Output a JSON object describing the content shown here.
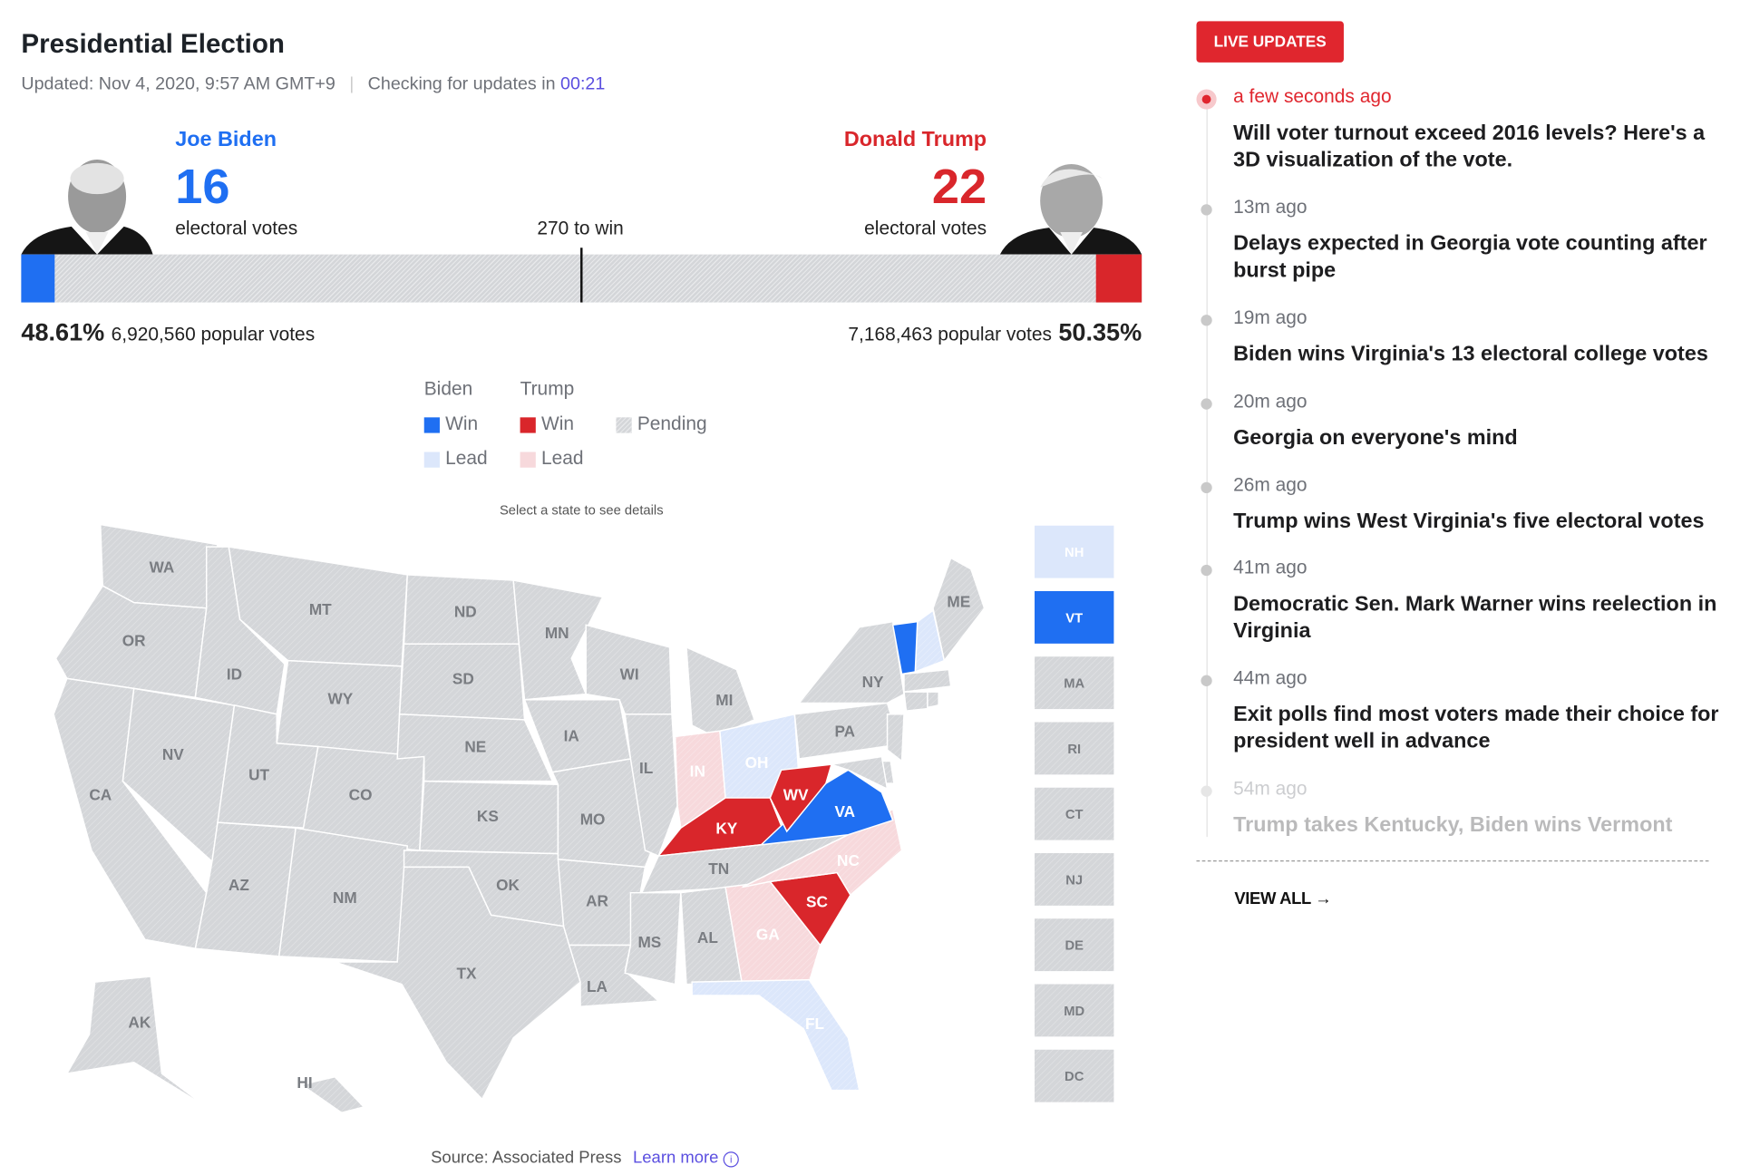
{
  "header": {
    "title": "Presidential Election",
    "updated": "Updated: Nov 4, 2020, 9:57 AM GMT+9",
    "checking": "Checking for updates in",
    "countdown": "00:21"
  },
  "candidates": [
    {
      "name": "Joe Biden",
      "electoral": 16,
      "electoral_label": "electoral votes",
      "percent": "48.61%",
      "popular": "6,920,560 popular votes",
      "color": "#1f6ff2"
    },
    {
      "name": "Donald Trump",
      "electoral": 22,
      "electoral_label": "electoral votes",
      "percent": "50.35%",
      "popular": "7,168,463 popular votes",
      "color": "#d9262b"
    }
  ],
  "threshold": {
    "value": 270,
    "label": "270 to win"
  },
  "map_legend": {
    "groups": [
      {
        "name": "Biden",
        "items": [
          {
            "label": "Win",
            "color": "#1f6ff2"
          },
          {
            "label": "Lead",
            "color": "#dce7fb"
          }
        ]
      },
      {
        "name": "Trump",
        "items": [
          {
            "label": "Win",
            "color": "#d9262b"
          },
          {
            "label": "Lead",
            "color": "#f7d9dc"
          }
        ]
      }
    ],
    "pending": {
      "label": "Pending",
      "color": "#d4d6d9"
    }
  },
  "map_hint": "Select a state to see details",
  "states": [
    {
      "abbr": "WA",
      "color": "#d4d6d9"
    },
    {
      "abbr": "OR",
      "color": "#d4d6d9"
    },
    {
      "abbr": "CA",
      "color": "#d4d6d9"
    },
    {
      "abbr": "NV",
      "color": "#d4d6d9"
    },
    {
      "abbr": "ID",
      "color": "#d4d6d9"
    },
    {
      "abbr": "MT",
      "color": "#d4d6d9"
    },
    {
      "abbr": "WY",
      "color": "#d4d6d9"
    },
    {
      "abbr": "UT",
      "color": "#d4d6d9"
    },
    {
      "abbr": "CO",
      "color": "#d4d6d9"
    },
    {
      "abbr": "AZ",
      "color": "#d4d6d9"
    },
    {
      "abbr": "NM",
      "color": "#d4d6d9"
    },
    {
      "abbr": "ND",
      "color": "#d4d6d9"
    },
    {
      "abbr": "SD",
      "color": "#d4d6d9"
    },
    {
      "abbr": "NE",
      "color": "#d4d6d9"
    },
    {
      "abbr": "KS",
      "color": "#d4d6d9"
    },
    {
      "abbr": "OK",
      "color": "#d4d6d9"
    },
    {
      "abbr": "TX",
      "color": "#d4d6d9"
    },
    {
      "abbr": "MN",
      "color": "#d4d6d9"
    },
    {
      "abbr": "IA",
      "color": "#d4d6d9"
    },
    {
      "abbr": "MO",
      "color": "#d4d6d9"
    },
    {
      "abbr": "AR",
      "color": "#d4d6d9"
    },
    {
      "abbr": "LA",
      "color": "#d4d6d9"
    },
    {
      "abbr": "WI",
      "color": "#d4d6d9"
    },
    {
      "abbr": "IL",
      "color": "#d4d6d9"
    },
    {
      "abbr": "MI",
      "color": "#d4d6d9"
    },
    {
      "abbr": "IN",
      "color": "#f7d9dc"
    },
    {
      "abbr": "OH",
      "color": "#dce7fb"
    },
    {
      "abbr": "KY",
      "color": "#d9262b"
    },
    {
      "abbr": "TN",
      "color": "#d4d6d9"
    },
    {
      "abbr": "MS",
      "color": "#d4d6d9"
    },
    {
      "abbr": "AL",
      "color": "#d4d6d9"
    },
    {
      "abbr": "GA",
      "color": "#f7d9dc"
    },
    {
      "abbr": "FL",
      "color": "#dce7fb"
    },
    {
      "abbr": "SC",
      "color": "#d9262b"
    },
    {
      "abbr": "NC",
      "color": "#f7d9dc"
    },
    {
      "abbr": "VA",
      "color": "#1f6ff2"
    },
    {
      "abbr": "WV",
      "color": "#d9262b"
    },
    {
      "abbr": "PA",
      "color": "#d4d6d9"
    },
    {
      "abbr": "NY",
      "color": "#d4d6d9"
    },
    {
      "abbr": "ME",
      "color": "#d4d6d9"
    },
    {
      "abbr": "AK",
      "color": "#d4d6d9"
    },
    {
      "abbr": "HI",
      "color": "#d4d6d9"
    }
  ],
  "small_states": [
    {
      "abbr": "NH",
      "color": "#dce7fb"
    },
    {
      "abbr": "VT",
      "color": "#1f6ff2"
    },
    {
      "abbr": "MA",
      "color": "#d4d6d9"
    },
    {
      "abbr": "RI",
      "color": "#d4d6d9"
    },
    {
      "abbr": "CT",
      "color": "#d4d6d9"
    },
    {
      "abbr": "NJ",
      "color": "#d4d6d9"
    },
    {
      "abbr": "DE",
      "color": "#d4d6d9"
    },
    {
      "abbr": "MD",
      "color": "#d4d6d9"
    },
    {
      "abbr": "DC",
      "color": "#d4d6d9"
    }
  ],
  "source": {
    "text": "Source: Associated Press",
    "link": "Learn more"
  },
  "live": {
    "badge": "LIVE UPDATES",
    "items": [
      {
        "time": "a few seconds ago",
        "headline": "Will voter turnout exceed 2016 levels? Here's a 3D visualization of the vote."
      },
      {
        "time": "13m ago",
        "headline": "Delays expected in Georgia vote counting after burst pipe"
      },
      {
        "time": "19m ago",
        "headline": "Biden wins Virginia's 13 electoral college votes"
      },
      {
        "time": "20m ago",
        "headline": "Georgia on everyone's mind"
      },
      {
        "time": "26m ago",
        "headline": "Trump wins West Virginia's five electoral votes"
      },
      {
        "time": "41m ago",
        "headline": "Democratic Sen. Mark Warner wins reelection in Virginia"
      },
      {
        "time": "44m ago",
        "headline": "Exit polls find most voters made their choice for president well in advance"
      },
      {
        "time": "54m ago",
        "headline": "Trump takes Kentucky, Biden wins Vermont"
      }
    ],
    "view_all": "VIEW ALL"
  }
}
